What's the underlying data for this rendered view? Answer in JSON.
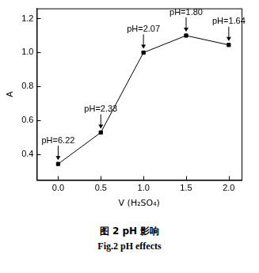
{
  "chart_data": {
    "type": "line",
    "x_label": "V (H₂SO₄)",
    "y_label": "A",
    "title": "图 2 pH 影响",
    "subtitle": "Fig.2 pH effects",
    "x": [
      0.0,
      0.5,
      1.0,
      1.5,
      2.0
    ],
    "values": [
      0.345,
      0.53,
      1.0,
      1.1,
      1.045
    ],
    "color": "#000000",
    "marker": "square",
    "line_style": "solid",
    "xlim": [
      -0.25,
      2.15
    ],
    "xticks": [
      {
        "value": 0,
        "label": "0.0"
      },
      {
        "value": 0.5,
        "label": "0.5"
      },
      {
        "value": 1,
        "label": "1.0"
      },
      {
        "value": 1.5,
        "label": "1.5"
      },
      {
        "value": 2,
        "label": "2.0"
      }
    ],
    "ylim": [
      0.25,
      1.26
    ],
    "yticks": [
      0.4,
      0.6,
      0.8,
      {
        "value": 1,
        "label": "1.0"
      },
      1.2
    ],
    "grid": false,
    "annotations": [
      {
        "x": 0.0,
        "y": 0.345,
        "text": "pH=6.22"
      },
      {
        "x": 0.5,
        "y": 0.53,
        "text": "pH=2.33"
      },
      {
        "x": 1.0,
        "y": 1.0,
        "text": "pH=2.07"
      },
      {
        "x": 1.5,
        "y": 1.1,
        "text": "pH=1.80"
      },
      {
        "x": 2.0,
        "y": 1.045,
        "text": "pH=1.64"
      }
    ]
  }
}
